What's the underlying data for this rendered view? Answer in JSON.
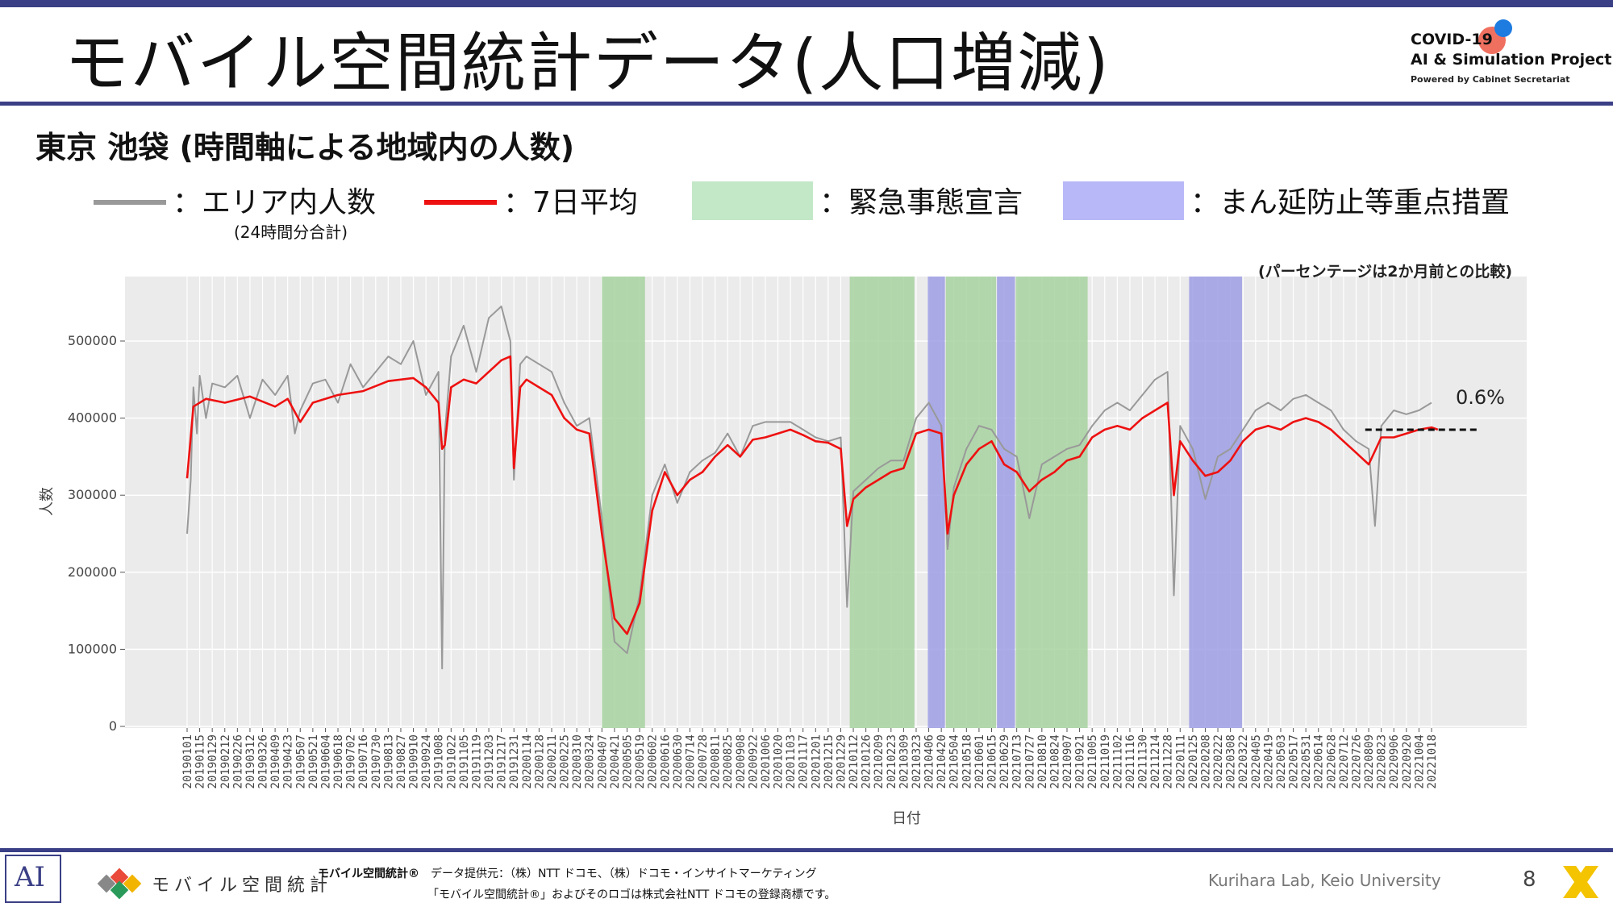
{
  "slide": {
    "title": "モバイル空間統計データ(人口増減)",
    "subtitle": "東京 池袋 (時間軸による地域内の人数)",
    "page_number": "8"
  },
  "logo": {
    "line1": "COVID-19",
    "line2": "AI & Simulation Project",
    "line3": "Powered by Cabinet Secretariat"
  },
  "legend": {
    "daily_label": "：エリア内人数",
    "daily_note": "(24時間分合計)",
    "avg_label": "：7日平均",
    "emergency_label": "：緊急事態宣言",
    "priority_label": "：まん延防止等重点措置"
  },
  "colors": {
    "daily_line": "#999999",
    "avg_line": "#ee1111",
    "emergency": "#c3e8c8",
    "priority": "#b8b8f8",
    "chart_emergency": "#a7d2a0",
    "chart_priority": "#9d9de4",
    "panel": "#ebebeb",
    "accent": "#3b3f86"
  },
  "chart_note": "(パーセンテージは2か月前との比較)",
  "chart_data": {
    "type": "line",
    "xlabel": "日付",
    "ylabel": "人数",
    "ylim": [
      0,
      580000
    ],
    "yticks": [
      0,
      100000,
      200000,
      300000,
      400000,
      500000
    ],
    "x_tick_labels": [
      "20190101",
      "20190115",
      "20190129",
      "20190212",
      "20190226",
      "20190312",
      "20190326",
      "20190409",
      "20190423",
      "20190507",
      "20190521",
      "20190604",
      "20190618",
      "20190702",
      "20190716",
      "20190730",
      "20190813",
      "20190827",
      "20190910",
      "20190924",
      "20191008",
      "20191022",
      "20191105",
      "20191119",
      "20191203",
      "20191217",
      "20191231",
      "20200114",
      "20200128",
      "20200211",
      "20200225",
      "20200310",
      "20200324",
      "20200407",
      "20200421",
      "20200505",
      "20200519",
      "20200602",
      "20200616",
      "20200630",
      "20200714",
      "20200728",
      "20200811",
      "20200825",
      "20200908",
      "20200922",
      "20201006",
      "20201020",
      "20201103",
      "20201117",
      "20201201",
      "20201215",
      "20201229",
      "20210112",
      "20210126",
      "20210209",
      "20210223",
      "20210309",
      "20210323",
      "20210406",
      "20210420",
      "20210504",
      "20210518",
      "20210601",
      "20210615",
      "20210629",
      "20210713",
      "20210727",
      "20210810",
      "20210824",
      "20210907",
      "20210921",
      "20211005",
      "20211019",
      "20211102",
      "20211116",
      "20211130",
      "20211214",
      "20211228",
      "20220111",
      "20220125",
      "20220208",
      "20220222",
      "20220308",
      "20220322",
      "20220405",
      "20220419",
      "20220503",
      "20220517",
      "20220531",
      "20220614",
      "20220628",
      "20220712",
      "20220726",
      "20220809",
      "20220823",
      "20220906",
      "20220920",
      "20221004",
      "20221018"
    ],
    "series": [
      {
        "name": "7日平均",
        "x": [
          "20190101",
          "20190108",
          "20190122",
          "20190212",
          "20190312",
          "20190409",
          "20190423",
          "20190507",
          "20190521",
          "20190618",
          "20190716",
          "20190813",
          "20190910",
          "20190924",
          "20191001",
          "20191008",
          "20191012",
          "20191015",
          "20191022",
          "20191105",
          "20191119",
          "20191203",
          "20191217",
          "20191227",
          "20191231",
          "20200107",
          "20200114",
          "20200128",
          "20200211",
          "20200225",
          "20200310",
          "20200324",
          "20200407",
          "20200421",
          "20200505",
          "20200519",
          "20200602",
          "20200616",
          "20200630",
          "20200714",
          "20200728",
          "20200811",
          "20200825",
          "20200908",
          "20200922",
          "20201006",
          "20201020",
          "20201103",
          "20201117",
          "20201201",
          "20201215",
          "20201229",
          "20210105",
          "20210112",
          "20210126",
          "20210209",
          "20210223",
          "20210309",
          "20210323",
          "20210406",
          "20210420",
          "20210427",
          "20210504",
          "20210518",
          "20210601",
          "20210615",
          "20210629",
          "20210713",
          "20210727",
          "20210810",
          "20210824",
          "20210907",
          "20210921",
          "20211005",
          "20211019",
          "20211102",
          "20211116",
          "20211130",
          "20211214",
          "20211228",
          "20220104",
          "20220111",
          "20220125",
          "20220208",
          "20220222",
          "20220308",
          "20220322",
          "20220405",
          "20220419",
          "20220503",
          "20220517",
          "20220531",
          "20220614",
          "20220628",
          "20220712",
          "20220726",
          "20220809",
          "20220823",
          "20220906",
          "20220920",
          "20221004",
          "20221018",
          "20221025"
        ],
        "values": [
          322000,
          415000,
          425000,
          420000,
          428000,
          415000,
          425000,
          395000,
          420000,
          430000,
          435000,
          448000,
          452000,
          440000,
          430000,
          420000,
          360000,
          365000,
          440000,
          450000,
          445000,
          460000,
          475000,
          480000,
          335000,
          440000,
          450000,
          440000,
          430000,
          400000,
          385000,
          380000,
          250000,
          140000,
          120000,
          160000,
          280000,
          330000,
          300000,
          320000,
          330000,
          350000,
          365000,
          350000,
          372000,
          375000,
          380000,
          385000,
          378000,
          370000,
          368000,
          360000,
          260000,
          295000,
          310000,
          320000,
          330000,
          335000,
          380000,
          385000,
          380000,
          250000,
          300000,
          340000,
          360000,
          370000,
          340000,
          330000,
          305000,
          320000,
          330000,
          345000,
          350000,
          375000,
          385000,
          390000,
          385000,
          400000,
          410000,
          420000,
          300000,
          370000,
          345000,
          325000,
          330000,
          345000,
          370000,
          385000,
          390000,
          385000,
          395000,
          400000,
          395000,
          385000,
          370000,
          355000,
          340000,
          375000,
          375000,
          380000,
          385000,
          388000,
          385000
        ]
      },
      {
        "name": "エリア内人数",
        "x": [
          "20190101",
          "20190105",
          "20190108",
          "20190112",
          "20190115",
          "20190122",
          "20190129",
          "20190212",
          "20190226",
          "20190312",
          "20190326",
          "20190409",
          "20190423",
          "20190501",
          "20190507",
          "20190521",
          "20190604",
          "20190618",
          "20190702",
          "20190716",
          "20190730",
          "20190813",
          "20190827",
          "20190910",
          "20190924",
          "20191008",
          "20191012",
          "20191015",
          "20191022",
          "20191105",
          "20191119",
          "20191203",
          "20191217",
          "20191227",
          "20191231",
          "20200107",
          "20200114",
          "20200128",
          "20200211",
          "20200225",
          "20200310",
          "20200324",
          "20200407",
          "20200421",
          "20200505",
          "20200519",
          "20200602",
          "20200616",
          "20200630",
          "20200714",
          "20200728",
          "20200811",
          "20200825",
          "20200908",
          "20200922",
          "20201006",
          "20201020",
          "20201103",
          "20201117",
          "20201201",
          "20201215",
          "20201229",
          "20210105",
          "20210112",
          "20210126",
          "20210209",
          "20210223",
          "20210309",
          "20210323",
          "20210406",
          "20210420",
          "20210427",
          "20210504",
          "20210518",
          "20210601",
          "20210615",
          "20210629",
          "20210713",
          "20210727",
          "20210810",
          "20210824",
          "20210907",
          "20210921",
          "20211005",
          "20211019",
          "20211102",
          "20211116",
          "20211130",
          "20211214",
          "20211228",
          "20220104",
          "20220111",
          "20220125",
          "20220208",
          "20220222",
          "20220308",
          "20220322",
          "20220405",
          "20220419",
          "20220503",
          "20220517",
          "20220531",
          "20220614",
          "20220628",
          "20220712",
          "20220726",
          "20220809",
          "20220816",
          "20220823",
          "20220906",
          "20220920",
          "20221004",
          "20221018"
        ],
        "values": [
          250000,
          320000,
          440000,
          380000,
          455000,
          400000,
          445000,
          440000,
          455000,
          400000,
          450000,
          430000,
          455000,
          380000,
          410000,
          445000,
          450000,
          420000,
          470000,
          440000,
          460000,
          480000,
          470000,
          500000,
          430000,
          460000,
          75000,
          380000,
          480000,
          520000,
          460000,
          530000,
          545000,
          500000,
          320000,
          470000,
          480000,
          470000,
          460000,
          420000,
          390000,
          400000,
          270000,
          110000,
          95000,
          170000,
          300000,
          340000,
          290000,
          330000,
          345000,
          355000,
          380000,
          350000,
          390000,
          395000,
          395000,
          395000,
          385000,
          375000,
          370000,
          375000,
          155000,
          305000,
          320000,
          335000,
          345000,
          345000,
          400000,
          420000,
          390000,
          230000,
          310000,
          360000,
          390000,
          385000,
          360000,
          350000,
          270000,
          340000,
          350000,
          360000,
          365000,
          390000,
          410000,
          420000,
          410000,
          430000,
          450000,
          460000,
          170000,
          390000,
          360000,
          295000,
          350000,
          360000,
          385000,
          410000,
          420000,
          410000,
          425000,
          430000,
          420000,
          410000,
          385000,
          370000,
          360000,
          260000,
          390000,
          410000,
          405000,
          410000,
          420000
        ]
      }
    ],
    "emergency_periods": [
      [
        "20200407",
        "20200525"
      ],
      [
        "20210108",
        "20210321"
      ],
      [
        "20210425",
        "20210620"
      ],
      [
        "20210712",
        "20210930"
      ]
    ],
    "priority_periods": [
      [
        "20210405",
        "20210424"
      ],
      [
        "20210621",
        "20210711"
      ],
      [
        "20220121",
        "20220321"
      ]
    ],
    "annotation": "0.6%",
    "legend_position": "top",
    "grid": true
  }
}
